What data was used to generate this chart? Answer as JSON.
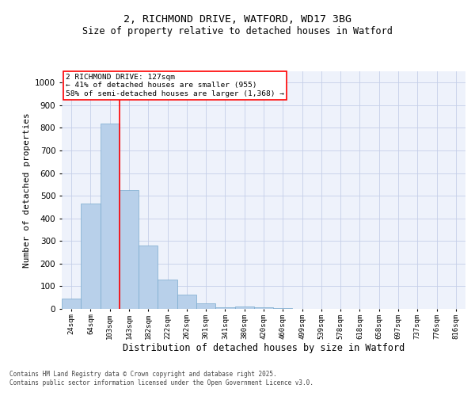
{
  "title_line1": "2, RICHMOND DRIVE, WATFORD, WD17 3BG",
  "title_line2": "Size of property relative to detached houses in Watford",
  "xlabel": "Distribution of detached houses by size in Watford",
  "ylabel": "Number of detached properties",
  "bar_color": "#b8d0ea",
  "bar_edge_color": "#7aaace",
  "vline_color": "red",
  "vline_x_index": 2.5,
  "categories": [
    "24sqm",
    "64sqm",
    "103sqm",
    "143sqm",
    "182sqm",
    "222sqm",
    "262sqm",
    "301sqm",
    "341sqm",
    "380sqm",
    "420sqm",
    "460sqm",
    "499sqm",
    "539sqm",
    "578sqm",
    "618sqm",
    "658sqm",
    "697sqm",
    "737sqm",
    "776sqm",
    "816sqm"
  ],
  "values": [
    47,
    465,
    820,
    525,
    280,
    128,
    62,
    23,
    7,
    10,
    7,
    2,
    0,
    0,
    0,
    0,
    0,
    0,
    0,
    0,
    0
  ],
  "ylim": [
    0,
    1050
  ],
  "yticks": [
    0,
    100,
    200,
    300,
    400,
    500,
    600,
    700,
    800,
    900,
    1000
  ],
  "annotation_text": "2 RICHMOND DRIVE: 127sqm\n← 41% of detached houses are smaller (955)\n58% of semi-detached houses are larger (1,368) →",
  "bg_color": "#eef2fb",
  "grid_color": "#c5cfe8",
  "footer_line1": "Contains HM Land Registry data © Crown copyright and database right 2025.",
  "footer_line2": "Contains public sector information licensed under the Open Government Licence v3.0."
}
